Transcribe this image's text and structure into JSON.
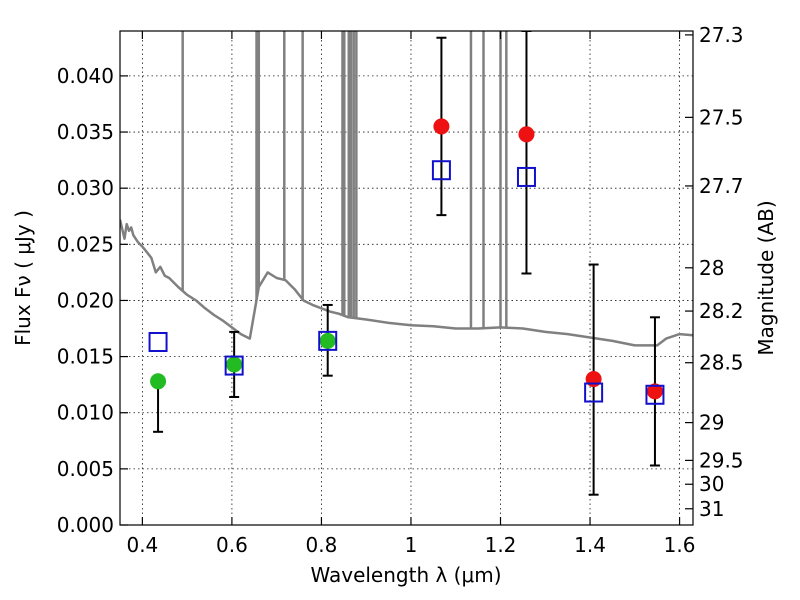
{
  "chart_data": {
    "type": "scatter",
    "xlabel": "Wavelength  λ (μm)",
    "ylabel": "Flux  Fν  ( μJy )",
    "ylabel_right": "Magnitude (AB)",
    "xlim": [
      0.35,
      1.63
    ],
    "ylim": [
      0.0,
      0.044
    ],
    "grid": true,
    "x_ticks": [
      0.4,
      0.6,
      0.8,
      1.0,
      1.2,
      1.4,
      1.6
    ],
    "x_tick_labels": [
      "0.4",
      "0.6",
      "0.8",
      "1",
      "1.2",
      "1.4",
      "1.6"
    ],
    "y_ticks": [
      0.0,
      0.005,
      0.01,
      0.015,
      0.02,
      0.025,
      0.03,
      0.035,
      0.04
    ],
    "y_tick_labels": [
      "0.000",
      "0.005",
      "0.010",
      "0.015",
      "0.020",
      "0.025",
      "0.030",
      "0.035",
      "0.040"
    ],
    "right_ticks": [
      {
        "mag": 27.3,
        "label": "27.3"
      },
      {
        "mag": 27.5,
        "label": "27.5"
      },
      {
        "mag": 27.7,
        "label": "27.7"
      },
      {
        "mag": 28.0,
        "label": "28"
      },
      {
        "mag": 28.2,
        "label": "28.2"
      },
      {
        "mag": 28.5,
        "label": "28.5"
      },
      {
        "mag": 29.0,
        "label": "29"
      },
      {
        "mag": 29.5,
        "label": "29.5"
      },
      {
        "mag": 30.0,
        "label": "30"
      },
      {
        "mag": 31.0,
        "label": "31"
      }
    ],
    "series": [
      {
        "kind": "observed_points",
        "marker": "circle",
        "points": [
          {
            "x": 0.435,
            "y": 0.0128,
            "yerr_low": 0.0083,
            "yerr_high": 0.0128,
            "color": "#22bb22"
          },
          {
            "x": 0.605,
            "y": 0.0143,
            "yerr_low": 0.0114,
            "yerr_high": 0.0172,
            "color": "#22bb22"
          },
          {
            "x": 0.814,
            "y": 0.0164,
            "yerr_low": 0.0133,
            "yerr_high": 0.0196,
            "color": "#22bb22"
          },
          {
            "x": 1.068,
            "y": 0.0355,
            "yerr_low": 0.0276,
            "yerr_high": 0.0434,
            "color": "#ee1111"
          },
          {
            "x": 1.258,
            "y": 0.0348,
            "yerr_low": 0.0224,
            "yerr_high": 0.044,
            "color": "#ee1111"
          },
          {
            "x": 1.408,
            "y": 0.013,
            "yerr_low": 0.0027,
            "yerr_high": 0.0232,
            "color": "#ee1111"
          },
          {
            "x": 1.545,
            "y": 0.0119,
            "yerr_low": 0.0053,
            "yerr_high": 0.0185,
            "color": "#ee1111"
          }
        ]
      },
      {
        "kind": "model_photometry",
        "marker": "open-square",
        "color": "#1111cc",
        "x": [
          0.435,
          0.605,
          0.814,
          1.068,
          1.258,
          1.408,
          1.545
        ],
        "y": [
          0.0163,
          0.0142,
          0.0164,
          0.0316,
          0.031,
          0.0118,
          0.0116
        ]
      },
      {
        "kind": "sed_model",
        "color": "#808080",
        "x": [
          0.35,
          0.36,
          0.365,
          0.37,
          0.375,
          0.38,
          0.39,
          0.4,
          0.41,
          0.42,
          0.43,
          0.44,
          0.45,
          0.46,
          0.48,
          0.5,
          0.52,
          0.54,
          0.56,
          0.58,
          0.6,
          0.62,
          0.64,
          0.66,
          0.68,
          0.7,
          0.72,
          0.74,
          0.76,
          0.78,
          0.8,
          0.82,
          0.84,
          0.86,
          0.88,
          0.9,
          0.95,
          1.0,
          1.05,
          1.1,
          1.15,
          1.2,
          1.25,
          1.3,
          1.35,
          1.4,
          1.45,
          1.5,
          1.52,
          1.55,
          1.57,
          1.6,
          1.63
        ],
        "y": [
          0.0272,
          0.0255,
          0.0268,
          0.0262,
          0.0265,
          0.0258,
          0.0252,
          0.0248,
          0.0243,
          0.0238,
          0.0225,
          0.023,
          0.0222,
          0.022,
          0.0212,
          0.0205,
          0.02,
          0.0193,
          0.0187,
          0.0182,
          0.0176,
          0.017,
          0.0166,
          0.0212,
          0.0225,
          0.022,
          0.0218,
          0.021,
          0.02,
          0.0196,
          0.0193,
          0.019,
          0.0188,
          0.0185,
          0.0184,
          0.0183,
          0.018,
          0.0178,
          0.0177,
          0.0175,
          0.0175,
          0.0176,
          0.0175,
          0.0172,
          0.017,
          0.0167,
          0.0164,
          0.016,
          0.016,
          0.016,
          0.0166,
          0.017,
          0.0169
        ],
        "spikes_up": [
          0.49,
          0.655,
          0.66,
          0.717,
          0.758,
          0.847,
          0.851,
          0.861,
          0.866,
          0.872,
          0.878
        ],
        "spikes_down": [
          1.134,
          1.162,
          1.2,
          1.213
        ]
      }
    ]
  }
}
